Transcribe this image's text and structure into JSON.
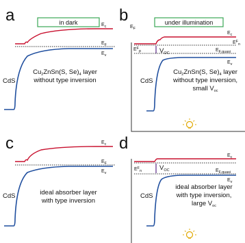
{
  "colors": {
    "conduction": "#c8102e",
    "valence": "#1f4e9e",
    "dashed": "#333333",
    "box_border": "#3aa655",
    "frame": "#333333",
    "bulb": "#e0a800"
  },
  "panels": {
    "a": {
      "letter": "a",
      "box_label": "in dark",
      "ec": "E",
      "ec_sub": "c",
      "ef": "E",
      "ef_sub": "F",
      "ev": "E",
      "ev_sub": "v",
      "cds": "CdS",
      "desc_line1": "Cu",
      "desc_line1_rest": "ZnSn(S, Se)",
      "desc_line1_end": " layer",
      "sub2": "2",
      "sub4": "4",
      "desc_line2": "without type inversion"
    },
    "b": {
      "letter": "b",
      "box_label": "under illumination",
      "ec": "E",
      "ec_sub": "c",
      "ef_n": "E",
      "ef_n_sup": "F",
      "ef_n_sub": "n",
      "ef_quasi": "E",
      "ef_quasi_sub": "F,quasi",
      "ef_p": "E",
      "ef_p_sup": "F",
      "ef_p_sub": "p",
      "ev": "E",
      "ev_sub": "v",
      "voc": "V",
      "voc_sub": "OC",
      "cds": "CdS",
      "side_label": "E",
      "side_label_sub": "F",
      "desc_line1": "Cu",
      "desc_line1_rest": "ZnSn(S, Se)",
      "desc_line1_end": " layer",
      "sub2": "2",
      "sub4": "4",
      "desc_line2": "without type inversion,",
      "desc_line3": "small V",
      "desc_line3_sub": "oc"
    },
    "c": {
      "letter": "c",
      "ec": "E",
      "ec_sub": "c",
      "ef": "E",
      "ef_sub": "F",
      "ev": "E",
      "ev_sub": "v",
      "cds": "CdS",
      "desc_line1": "ideal absorber layer",
      "desc_line2": "with type inversion"
    },
    "d": {
      "letter": "d",
      "ec": "E",
      "ec_sub": "c",
      "ef_n": "E",
      "ef_n_sup": "F",
      "ef_n_sub": "n",
      "ef_quasi": "E",
      "ef_quasi_sub": "F,quasi",
      "ev": "E",
      "ev_sub": "v",
      "voc": "V",
      "voc_sub": "OC",
      "cds": "CdS",
      "desc_line1": "ideal absorber layer",
      "desc_line2": "with type inversion,",
      "desc_line3": "large V",
      "desc_line3_sub": "oc"
    }
  }
}
